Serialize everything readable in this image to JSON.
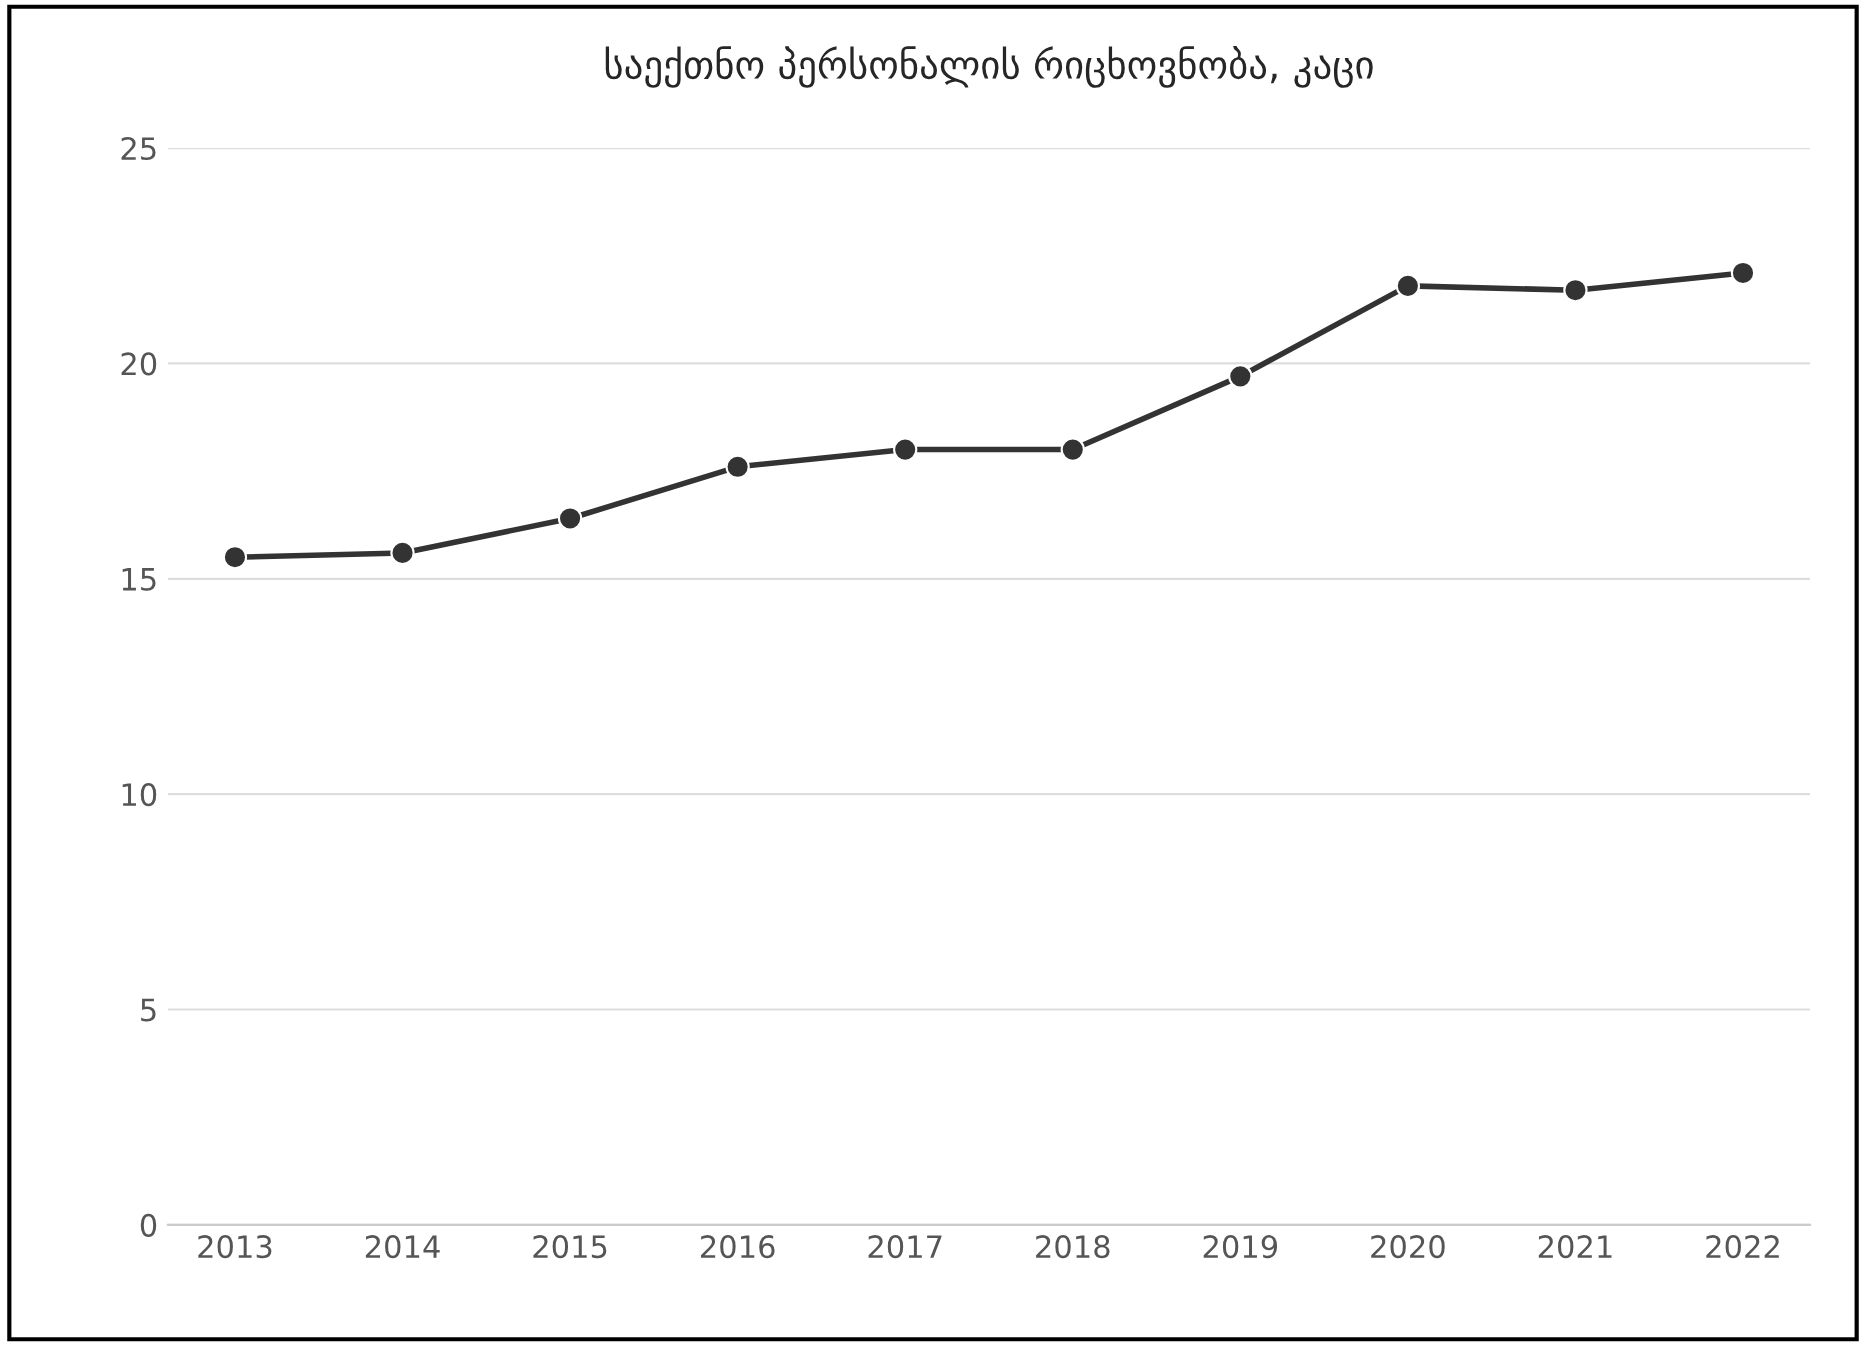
{
  "chart_data": {
    "type": "line",
    "title": "საექთნო პერსონალის რიცხოვნობა, კაცი",
    "categories": [
      "2013",
      "2014",
      "2015",
      "2016",
      "2017",
      "2018",
      "2019",
      "2020",
      "2021",
      "2022"
    ],
    "series": [
      {
        "color": "#333333",
        "values": [
          15.5,
          15.6,
          16.4,
          17.6,
          18.0,
          18.0,
          19.7,
          21.8,
          21.7,
          22.1
        ]
      }
    ],
    "ylim": [
      0,
      25
    ],
    "yticks": [
      0,
      5,
      10,
      15,
      20,
      25
    ],
    "grid": "y",
    "marker": "circle",
    "line_style": "solid"
  }
}
